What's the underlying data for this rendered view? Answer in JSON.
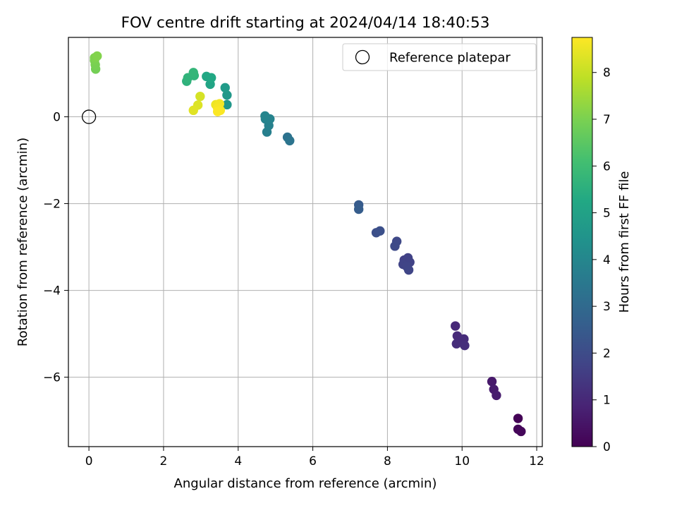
{
  "chart_data": {
    "type": "scatter",
    "title": "FOV centre drift starting at 2024/04/14 18:40:53",
    "xlabel": "Angular distance from reference (arcmin)",
    "ylabel": "Rotation from reference (arcmin)",
    "xlim": [
      -0.55,
      12.15
    ],
    "ylim": [
      -7.6,
      1.83
    ],
    "xticks": [
      0,
      2,
      4,
      6,
      8,
      10,
      12
    ],
    "yticks": [
      -6,
      -4,
      -2,
      0
    ],
    "grid": true,
    "legend": {
      "position": "top-right",
      "entries": [
        "Reference platepar"
      ]
    },
    "reference_point": {
      "label": "Reference platepar",
      "x": 0,
      "y": 0
    },
    "colorbar": {
      "label": "Hours from first FF file",
      "min": 0,
      "max": 8.75,
      "ticks": [
        0,
        1,
        2,
        3,
        4,
        5,
        6,
        7,
        8
      ],
      "colormap": "viridis"
    },
    "series": [
      {
        "values": [
          {
            "x": 11.5,
            "y": -6.95,
            "c": 0.05
          },
          {
            "x": 11.5,
            "y": -7.2,
            "c": 0.1
          },
          {
            "x": 11.58,
            "y": -7.25,
            "c": 0.15
          },
          {
            "x": 10.8,
            "y": -6.1,
            "c": 0.6
          },
          {
            "x": 10.85,
            "y": -6.28,
            "c": 0.65
          },
          {
            "x": 10.92,
            "y": -6.42,
            "c": 0.7
          },
          {
            "x": 9.82,
            "y": -4.82,
            "c": 1.0
          },
          {
            "x": 9.87,
            "y": -5.05,
            "c": 1.05
          },
          {
            "x": 10.05,
            "y": -5.12,
            "c": 1.1
          },
          {
            "x": 9.85,
            "y": -5.23,
            "c": 1.12
          },
          {
            "x": 10.07,
            "y": -5.27,
            "c": 1.15
          },
          {
            "x": 8.45,
            "y": -3.3,
            "c": 1.65
          },
          {
            "x": 8.55,
            "y": -3.25,
            "c": 1.7
          },
          {
            "x": 8.6,
            "y": -3.35,
            "c": 1.72
          },
          {
            "x": 8.42,
            "y": -3.4,
            "c": 1.75
          },
          {
            "x": 8.52,
            "y": -3.45,
            "c": 1.78
          },
          {
            "x": 8.57,
            "y": -3.53,
            "c": 1.8
          },
          {
            "x": 8.25,
            "y": -2.87,
            "c": 1.9
          },
          {
            "x": 8.2,
            "y": -2.98,
            "c": 1.95
          },
          {
            "x": 7.7,
            "y": -2.67,
            "c": 2.1
          },
          {
            "x": 7.8,
            "y": -2.63,
            "c": 2.15
          },
          {
            "x": 7.23,
            "y": -2.03,
            "c": 2.5
          },
          {
            "x": 7.23,
            "y": -2.13,
            "c": 2.55
          },
          {
            "x": 5.32,
            "y": -0.47,
            "c": 3.3
          },
          {
            "x": 5.38,
            "y": -0.55,
            "c": 3.35
          },
          {
            "x": 4.77,
            "y": -0.35,
            "c": 3.75
          },
          {
            "x": 4.82,
            "y": -0.2,
            "c": 3.8
          },
          {
            "x": 4.73,
            "y": -0.05,
            "c": 3.85
          },
          {
            "x": 4.85,
            "y": -0.05,
            "c": 3.9
          },
          {
            "x": 4.72,
            "y": 0.02,
            "c": 3.95
          },
          {
            "x": 3.7,
            "y": 0.28,
            "c": 4.6
          },
          {
            "x": 3.7,
            "y": 0.5,
            "c": 4.65
          },
          {
            "x": 3.65,
            "y": 0.67,
            "c": 4.75
          },
          {
            "x": 3.25,
            "y": 0.75,
            "c": 5.1
          },
          {
            "x": 3.15,
            "y": 0.93,
            "c": 5.2
          },
          {
            "x": 3.28,
            "y": 0.9,
            "c": 5.25
          },
          {
            "x": 2.62,
            "y": 0.82,
            "c": 5.6
          },
          {
            "x": 2.65,
            "y": 0.9,
            "c": 5.65
          },
          {
            "x": 2.82,
            "y": 0.95,
            "c": 5.7
          },
          {
            "x": 2.8,
            "y": 1.02,
            "c": 5.75
          },
          {
            "x": 0.18,
            "y": 1.1,
            "c": 6.9
          },
          {
            "x": 0.17,
            "y": 1.2,
            "c": 6.95
          },
          {
            "x": 0.15,
            "y": 1.3,
            "c": 7.0
          },
          {
            "x": 0.15,
            "y": 1.36,
            "c": 7.05
          },
          {
            "x": 0.22,
            "y": 1.4,
            "c": 7.1
          },
          {
            "x": 2.98,
            "y": 0.47,
            "c": 8.2
          },
          {
            "x": 2.92,
            "y": 0.27,
            "c": 8.3
          },
          {
            "x": 2.8,
            "y": 0.15,
            "c": 8.35
          },
          {
            "x": 3.4,
            "y": 0.28,
            "c": 8.55
          },
          {
            "x": 3.5,
            "y": 0.3,
            "c": 8.6
          },
          {
            "x": 3.45,
            "y": 0.2,
            "c": 8.65
          },
          {
            "x": 3.52,
            "y": 0.15,
            "c": 8.7
          },
          {
            "x": 3.45,
            "y": 0.12,
            "c": 8.72
          }
        ]
      }
    ]
  }
}
